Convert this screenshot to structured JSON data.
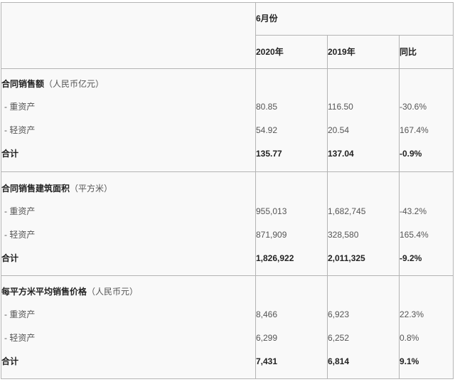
{
  "header": {
    "period": "6月份",
    "columns": [
      "2020年",
      "2019年",
      "同比"
    ]
  },
  "sections": [
    {
      "title": "合同销售额",
      "unit": "（人民币亿元）",
      "rows": [
        {
          "label": "- 重资产",
          "values": [
            "80.85",
            "116.50",
            "-30.6%"
          ]
        },
        {
          "label": "- 轻资产",
          "values": [
            "54.92",
            "20.54",
            "167.4%"
          ]
        }
      ],
      "total": {
        "label": "合计",
        "values": [
          "135.77",
          "137.04",
          "-0.9%"
        ]
      }
    },
    {
      "title": "合同销售建筑面积",
      "unit": "（平方米）",
      "rows": [
        {
          "label": "- 重资产",
          "values": [
            "955,013",
            "1,682,745",
            "-43.2%"
          ]
        },
        {
          "label": "- 轻资产",
          "values": [
            "871,909",
            "328,580",
            "165.4%"
          ]
        }
      ],
      "total": {
        "label": "合计",
        "values": [
          "1,826,922",
          "2,011,325",
          "-9.2%"
        ]
      }
    },
    {
      "title": "每平方米平均销售价格",
      "unit": "（人民币元）",
      "rows": [
        {
          "label": "- 重资产",
          "values": [
            "8,466",
            "6,923",
            "22.3%"
          ]
        },
        {
          "label": "- 轻资产",
          "values": [
            "6,299",
            "6,252",
            "0.8%"
          ]
        }
      ],
      "total": {
        "label": "合计",
        "values": [
          "7,431",
          "6,814",
          "9.1%"
        ]
      }
    }
  ]
}
